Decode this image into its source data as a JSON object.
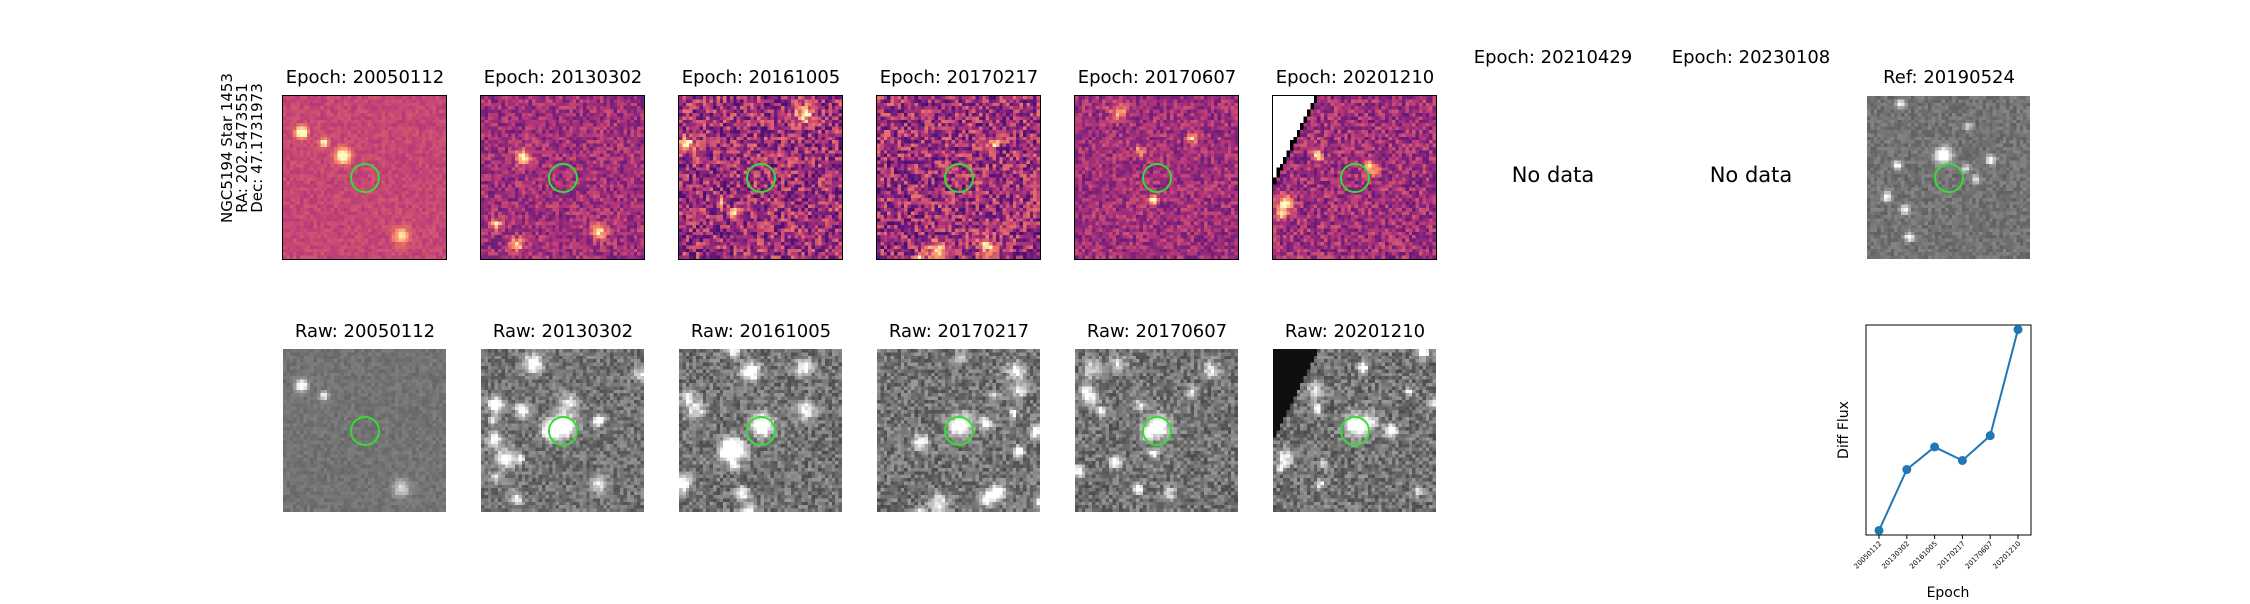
{
  "star_label": {
    "line1": "NGC5194 Star 1453",
    "line2": "RA: 202.5473551",
    "line3": "Dec: 47.1731973"
  },
  "diff_panels": [
    {
      "title": "Epoch: 20050112",
      "has_data": true
    },
    {
      "title": "Epoch: 20130302",
      "has_data": true
    },
    {
      "title": "Epoch: 20161005",
      "has_data": true
    },
    {
      "title": "Epoch: 20170217",
      "has_data": true
    },
    {
      "title": "Epoch: 20170607",
      "has_data": true
    },
    {
      "title": "Epoch: 20201210",
      "has_data": true
    },
    {
      "title": "Epoch: 20210429",
      "has_data": false,
      "message": "No data"
    },
    {
      "title": "Epoch: 20230108",
      "has_data": false,
      "message": "No data"
    },
    {
      "title": "Ref: 20190524",
      "has_data": true
    }
  ],
  "raw_panels": [
    {
      "title": "Raw: 20050112"
    },
    {
      "title": "Raw: 20130302"
    },
    {
      "title": "Raw: 20161005"
    },
    {
      "title": "Raw: 20170217"
    },
    {
      "title": "Raw: 20170607"
    },
    {
      "title": "Raw: 20201210"
    }
  ],
  "colors": {
    "aperture_circle": "#33dd33",
    "line_series": "#1f77b4",
    "diff_colormap": "magma",
    "raw_colormap": "gray"
  },
  "chart_data": {
    "type": "line",
    "xlabel": "Epoch",
    "ylabel": "Diff Flux",
    "categories": [
      "20050112",
      "20130302",
      "20161005",
      "20170217",
      "20170607",
      "20201210"
    ],
    "series": [
      {
        "values": [
          0.0,
          0.27,
          0.37,
          0.31,
          0.42,
          0.89
        ]
      }
    ],
    "ylim": [
      -0.02,
      0.91
    ],
    "grid": false,
    "y_tick_labels_shown": false,
    "x_tick_rotation": 45
  }
}
